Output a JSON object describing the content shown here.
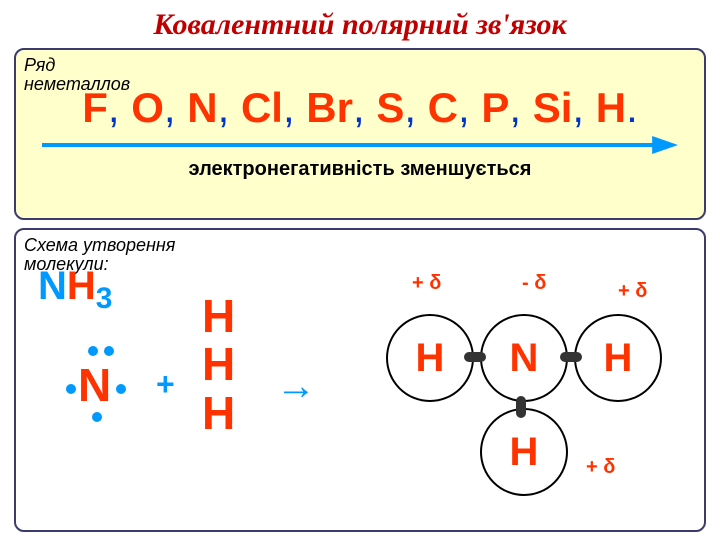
{
  "title": "Ковалентний полярний зв'язок",
  "top_box": {
    "label_line1": "Ряд",
    "label_line2": "неметаллов",
    "elements": [
      "F",
      "O",
      "N",
      "Cl",
      "Br",
      "S",
      "C",
      "P",
      "Si",
      "H"
    ],
    "element_color": "#ff3300",
    "separator_color": "#0033cc",
    "arrow_color": "#0099ff",
    "en_text": "электронегативність зменшується",
    "background": "#ffffcc"
  },
  "bottom_box": {
    "label_line1": "Схема  утворення",
    "label_line2": "молекули:",
    "formula": {
      "N": "N",
      "H": "H",
      "sub": "3"
    },
    "N_atom": "N",
    "plus": "+",
    "H_atoms": [
      "H",
      "H",
      "H"
    ],
    "arrow": "→",
    "molecule": {
      "N": "N",
      "H_left": "H",
      "H_right": "H",
      "H_bottom": "H",
      "delta_minus": "- δ",
      "delta_plus": "+ δ"
    },
    "colors": {
      "N_text": "#ff3300",
      "H_text": "#ff3300",
      "formula_N": "#0099ff",
      "formula_H": "#ff3300",
      "dot": "#0099ff",
      "plus": "#0099ff",
      "arrow": "#0099ff",
      "circle_border": "#000000",
      "bond": "#333333",
      "charge": "#ff3300"
    }
  }
}
